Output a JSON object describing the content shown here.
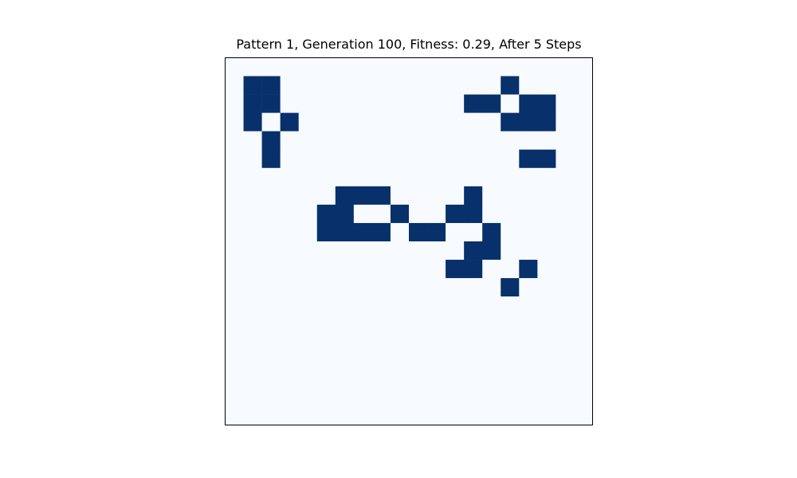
{
  "chart_data": {
    "type": "heatmap",
    "title": "Pattern 1, Generation 100, Fitness: 0.29, After 5 Steps",
    "xlabel": "",
    "ylabel": "",
    "grid": false,
    "rows": 20,
    "cols": 20,
    "colors": {
      "dead": "#f7fbff",
      "alive": "#08306b",
      "frame": "#000000"
    },
    "cells": [
      [
        0,
        0,
        0,
        0,
        0,
        0,
        0,
        0,
        0,
        0,
        0,
        0,
        0,
        0,
        0,
        0,
        0,
        0,
        0,
        0
      ],
      [
        0,
        1,
        1,
        0,
        0,
        0,
        0,
        0,
        0,
        0,
        0,
        0,
        0,
        0,
        0,
        1,
        0,
        0,
        0,
        0
      ],
      [
        0,
        1,
        1,
        0,
        0,
        0,
        0,
        0,
        0,
        0,
        0,
        0,
        0,
        1,
        1,
        0,
        1,
        1,
        0,
        0
      ],
      [
        0,
        1,
        0,
        1,
        0,
        0,
        0,
        0,
        0,
        0,
        0,
        0,
        0,
        0,
        0,
        1,
        1,
        1,
        0,
        0
      ],
      [
        0,
        0,
        1,
        0,
        0,
        0,
        0,
        0,
        0,
        0,
        0,
        0,
        0,
        0,
        0,
        0,
        0,
        0,
        0,
        0
      ],
      [
        0,
        0,
        1,
        0,
        0,
        0,
        0,
        0,
        0,
        0,
        0,
        0,
        0,
        0,
        0,
        0,
        1,
        1,
        0,
        0
      ],
      [
        0,
        0,
        0,
        0,
        0,
        0,
        0,
        0,
        0,
        0,
        0,
        0,
        0,
        0,
        0,
        0,
        0,
        0,
        0,
        0
      ],
      [
        0,
        0,
        0,
        0,
        0,
        0,
        1,
        1,
        1,
        0,
        0,
        0,
        0,
        1,
        0,
        0,
        0,
        0,
        0,
        0
      ],
      [
        0,
        0,
        0,
        0,
        0,
        1,
        1,
        0,
        0,
        1,
        0,
        0,
        1,
        1,
        0,
        0,
        0,
        0,
        0,
        0
      ],
      [
        0,
        0,
        0,
        0,
        0,
        1,
        1,
        1,
        1,
        0,
        1,
        1,
        0,
        0,
        1,
        0,
        0,
        0,
        0,
        0
      ],
      [
        0,
        0,
        0,
        0,
        0,
        0,
        0,
        0,
        0,
        0,
        0,
        0,
        0,
        1,
        1,
        0,
        0,
        0,
        0,
        0
      ],
      [
        0,
        0,
        0,
        0,
        0,
        0,
        0,
        0,
        0,
        0,
        0,
        0,
        1,
        1,
        0,
        0,
        1,
        0,
        0,
        0
      ],
      [
        0,
        0,
        0,
        0,
        0,
        0,
        0,
        0,
        0,
        0,
        0,
        0,
        0,
        0,
        0,
        1,
        0,
        0,
        0,
        0
      ],
      [
        0,
        0,
        0,
        0,
        0,
        0,
        0,
        0,
        0,
        0,
        0,
        0,
        0,
        0,
        0,
        0,
        0,
        0,
        0,
        0
      ],
      [
        0,
        0,
        0,
        0,
        0,
        0,
        0,
        0,
        0,
        0,
        0,
        0,
        0,
        0,
        0,
        0,
        0,
        0,
        0,
        0
      ],
      [
        0,
        0,
        0,
        0,
        0,
        0,
        0,
        0,
        0,
        0,
        0,
        0,
        0,
        0,
        0,
        0,
        0,
        0,
        0,
        0
      ],
      [
        0,
        0,
        0,
        0,
        0,
        0,
        0,
        0,
        0,
        0,
        0,
        0,
        0,
        0,
        0,
        0,
        0,
        0,
        0,
        0
      ],
      [
        0,
        0,
        0,
        0,
        0,
        0,
        0,
        0,
        0,
        0,
        0,
        0,
        0,
        0,
        0,
        0,
        0,
        0,
        0,
        0
      ],
      [
        0,
        0,
        0,
        0,
        0,
        0,
        0,
        0,
        0,
        0,
        0,
        0,
        0,
        0,
        0,
        0,
        0,
        0,
        0,
        0
      ],
      [
        0,
        0,
        0,
        0,
        0,
        0,
        0,
        0,
        0,
        0,
        0,
        0,
        0,
        0,
        0,
        0,
        0,
        0,
        0,
        0
      ]
    ]
  }
}
